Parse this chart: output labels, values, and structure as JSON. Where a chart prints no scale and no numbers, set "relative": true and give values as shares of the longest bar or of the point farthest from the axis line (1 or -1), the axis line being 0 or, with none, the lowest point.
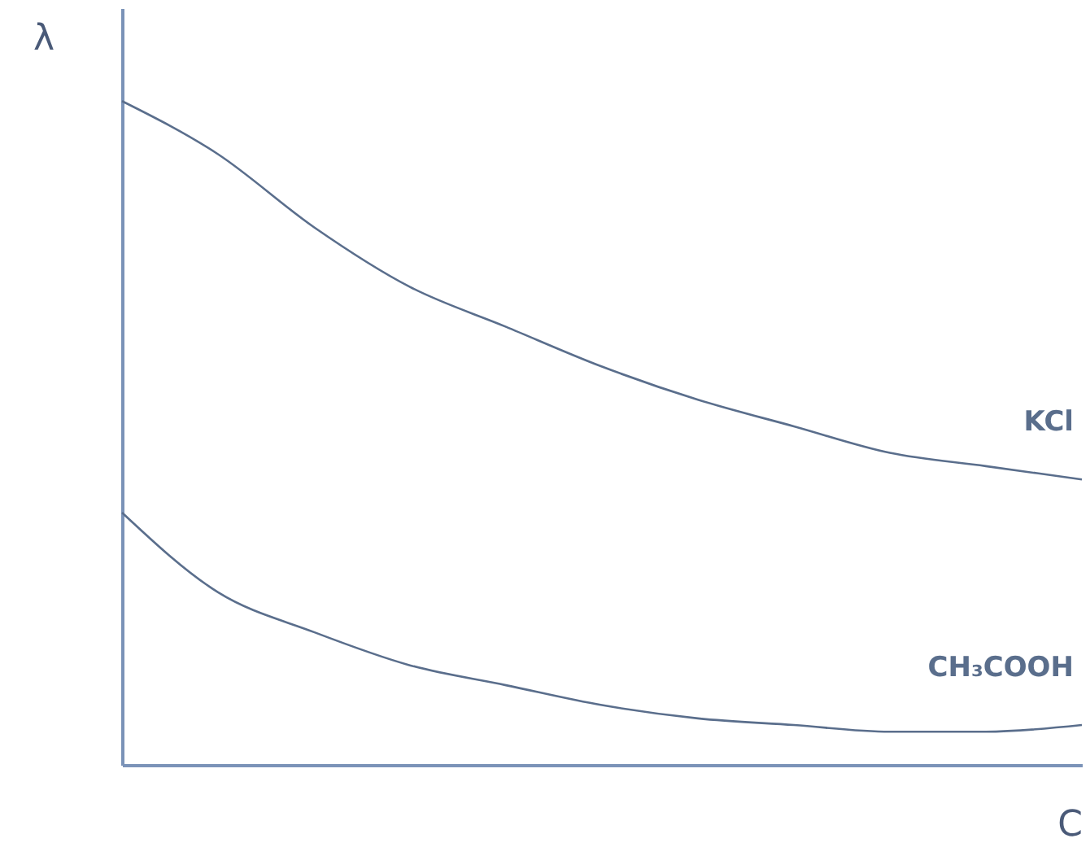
{
  "chart_data": {
    "type": "line",
    "relative": true,
    "xlabel": "C",
    "ylabel": "λ",
    "grid": false,
    "legend": false,
    "marker": "none",
    "line_style": "solid",
    "categories": [
      null,
      null,
      null,
      null,
      null,
      null,
      null,
      null,
      null,
      null,
      null
    ],
    "series": [
      {
        "name": "KCl",
        "color": "#5a6e8c",
        "values": [
          1,
          0.92,
          0.81,
          0.72,
          0.66,
          0.6,
          0.55,
          0.51,
          0.47,
          0.45,
          0.43
        ]
      },
      {
        "name": "CH₃COOH",
        "color": "#5a6e8c",
        "values": [
          0.38,
          0.26,
          0.2,
          0.15,
          0.12,
          0.09,
          0.07,
          0.06,
          0.05,
          0.05,
          0.06
        ]
      }
    ]
  }
}
